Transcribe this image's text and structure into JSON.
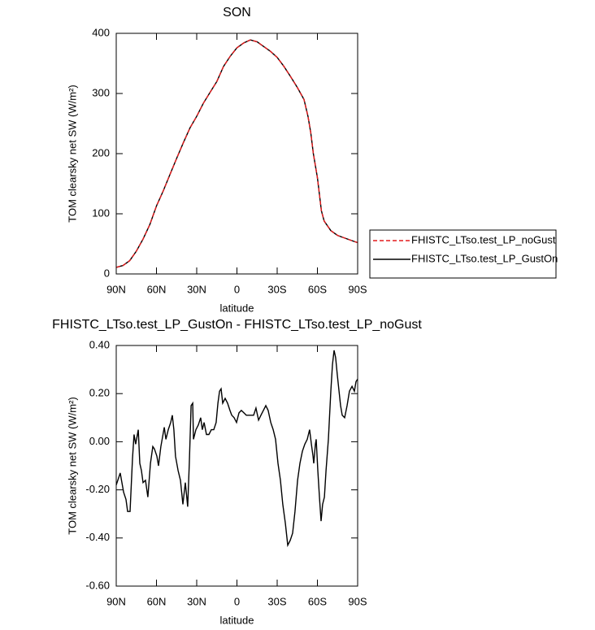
{
  "chart_data": [
    {
      "type": "line",
      "title": "SON",
      "xlabel": "latitude",
      "ylabel": "TOM clearsky net SW (W/m²)",
      "xlim": [
        90,
        -90
      ],
      "xticks": [
        {
          "value": 90,
          "label": "90N"
        },
        {
          "value": 60,
          "label": "60N"
        },
        {
          "value": 30,
          "label": "30N"
        },
        0,
        {
          "value": -30,
          "label": "30S"
        },
        {
          "value": -60,
          "label": "60S"
        },
        {
          "value": -90,
          "label": "90S"
        }
      ],
      "ylim": [
        0,
        400
      ],
      "yticks": [
        0,
        100,
        200,
        300,
        400
      ],
      "x": [
        90,
        85,
        80,
        75,
        70,
        65,
        60,
        55,
        50,
        45,
        40,
        35,
        30,
        25,
        20,
        15,
        10,
        5,
        0,
        -5,
        -10,
        -15,
        -20,
        -25,
        -30,
        -35,
        -40,
        -45,
        -50,
        -53,
        -55,
        -57,
        -60,
        -63,
        -65,
        -70,
        -75,
        -80,
        -85,
        -90
      ],
      "series": [
        {
          "name": "FHISTC_LTso.test_LP_noGust",
          "color": "#e41a1c",
          "dash": true,
          "values": [
            11,
            14,
            22,
            38,
            58,
            82,
            113,
            138,
            165,
            192,
            218,
            243,
            262,
            284,
            302,
            320,
            345,
            362,
            376,
            384,
            389,
            386,
            378,
            370,
            360,
            345,
            328,
            310,
            290,
            262,
            235,
            200,
            160,
            105,
            88,
            72,
            64,
            60,
            56,
            52
          ]
        },
        {
          "name": "FHISTC_LTso.test_LP_GustOn",
          "color": "#000000",
          "dash": false,
          "values": [
            11,
            14,
            22,
            38,
            58,
            82,
            113,
            138,
            165,
            192,
            218,
            243,
            262,
            284,
            302,
            320,
            345,
            362,
            376,
            384,
            389,
            386,
            378,
            370,
            360,
            345,
            328,
            310,
            290,
            262,
            235,
            200,
            160,
            105,
            88,
            72,
            64,
            60,
            56,
            52
          ]
        }
      ],
      "legend": "right"
    },
    {
      "type": "line",
      "title": "FHISTC_LTso.test_LP_GustOn - FHISTC_LTso.test_LP_noGust",
      "xlabel": "latitude",
      "ylabel": "TOM clearsky net SW (W/m²)",
      "xlim": [
        90,
        -90
      ],
      "xticks": [
        {
          "value": 90,
          "label": "90N"
        },
        {
          "value": 60,
          "label": "60N"
        },
        {
          "value": 30,
          "label": "30N"
        },
        0,
        {
          "value": -30,
          "label": "30S"
        },
        {
          "value": -60,
          "label": "60S"
        },
        {
          "value": -90,
          "label": "90S"
        }
      ],
      "ylim": [
        -0.6,
        0.4
      ],
      "yticks": [
        {
          "value": -0.6,
          "label": "-0.60"
        },
        {
          "value": -0.4,
          "label": "-0.40"
        },
        {
          "value": -0.2,
          "label": "-0.20"
        },
        {
          "value": 0,
          "label": "0.00"
        },
        {
          "value": 0.2,
          "label": "0.20"
        },
        {
          "value": 0.4,
          "label": "0.40"
        }
      ],
      "color": "#000000",
      "x": [
        90,
        87,
        84.5,
        82.7,
        81.5,
        79.7,
        77.9,
        76.7,
        75.5,
        73.6,
        72.4,
        71.2,
        70,
        68.2,
        66.4,
        64.5,
        62.7,
        61.5,
        59.7,
        58.5,
        56.7,
        54.2,
        53,
        51.2,
        49.4,
        48.2,
        47,
        45.8,
        43.9,
        42.1,
        40.3,
        38.5,
        36.7,
        35.5,
        34.2,
        33,
        32.4,
        30.6,
        28.8,
        27,
        25.8,
        24.5,
        22.7,
        20.9,
        19.1,
        17.3,
        15.5,
        14.2,
        13,
        11.8,
        10.6,
        8.8,
        7,
        5.2,
        3.9,
        2.1,
        0.3,
        -1.5,
        -3.3,
        -5.2,
        -7,
        -8.8,
        -10.6,
        -12.4,
        -14.2,
        -16.1,
        -17.9,
        -19.7,
        -21.5,
        -23.3,
        -25.2,
        -27,
        -28.8,
        -30.6,
        -32.4,
        -34.2,
        -36.1,
        -37.9,
        -39.7,
        -41.5,
        -43.3,
        -45.2,
        -47,
        -48.8,
        -50.6,
        -52.4,
        -54.2,
        -55.5,
        -56.7,
        -57.3,
        -58.5,
        -59.1,
        -60.3,
        -61.5,
        -62.7,
        -63.9,
        -65.2,
        -66.4,
        -68.2,
        -70,
        -71.2,
        -72.4,
        -73.6,
        -74.8,
        -76.1,
        -77.3,
        -78.5,
        -80.3,
        -82.1,
        -83.9,
        -85.8,
        -87.6,
        -88.8,
        -90
      ],
      "values": [
        -0.18,
        -0.13,
        -0.21,
        -0.24,
        -0.29,
        -0.29,
        -0.07,
        0.03,
        -0.01,
        0.05,
        -0.09,
        -0.12,
        -0.17,
        -0.16,
        -0.23,
        -0.09,
        -0.02,
        -0.03,
        -0.06,
        -0.1,
        -0.02,
        0.06,
        0.01,
        0.05,
        0.08,
        0.11,
        0.05,
        -0.06,
        -0.12,
        -0.16,
        -0.26,
        -0.17,
        -0.27,
        -0.09,
        0.15,
        0.16,
        0.01,
        0.05,
        0.07,
        0.1,
        0.05,
        0.08,
        0.03,
        0.03,
        0.05,
        0.05,
        0.08,
        0.16,
        0.21,
        0.22,
        0.16,
        0.18,
        0.16,
        0.13,
        0.11,
        0.1,
        0.08,
        0.12,
        0.13,
        0.12,
        0.11,
        0.11,
        0.11,
        0.11,
        0.14,
        0.09,
        0.11,
        0.13,
        0.15,
        0.13,
        0.08,
        0.05,
        0.01,
        -0.09,
        -0.16,
        -0.26,
        -0.34,
        -0.43,
        -0.41,
        -0.38,
        -0.29,
        -0.16,
        -0.09,
        -0.04,
        -0.01,
        0.01,
        0.05,
        -0.01,
        -0.06,
        -0.09,
        -0.01,
        0.01,
        -0.12,
        -0.23,
        -0.33,
        -0.26,
        -0.23,
        -0.12,
        0.01,
        0.21,
        0.32,
        0.38,
        0.35,
        0.28,
        0.21,
        0.15,
        0.11,
        0.1,
        0.15,
        0.21,
        0.23,
        0.21,
        0.25,
        0.26
      ]
    }
  ]
}
